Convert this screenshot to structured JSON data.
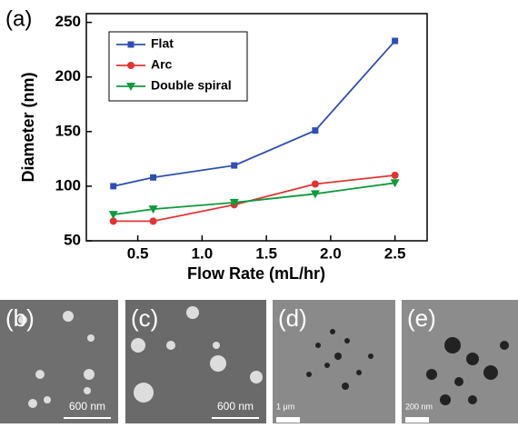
{
  "chart_data": {
    "type": "line",
    "label": "(a)",
    "xlabel": "Flow Rate (mL/hr)",
    "ylabel": "Diameter (nm)",
    "x": [
      0.31,
      0.62,
      1.25,
      1.88,
      2.5
    ],
    "series": [
      {
        "name": "Flat",
        "color": "#2f4fb0",
        "marker": "square",
        "values": [
          100,
          108,
          119,
          151,
          233
        ]
      },
      {
        "name": "Arc",
        "color": "#e03434",
        "marker": "circle",
        "values": [
          68,
          68,
          83,
          102,
          110
        ]
      },
      {
        "name": "Double spiral",
        "color": "#0f9a3c",
        "marker": "triangle-down",
        "values": [
          74,
          79,
          85,
          93,
          103
        ]
      }
    ],
    "xlim": [
      0.1,
      2.75
    ],
    "ylim": [
      50,
      258
    ],
    "xticks": [
      0.5,
      {
        "value": 1,
        "label": "1.0"
      },
      1.5,
      {
        "value": 2,
        "label": "2.0"
      },
      2.5
    ],
    "yticks": [
      50,
      100,
      150,
      200,
      250
    ],
    "legend": "upper left"
  },
  "panels": [
    {
      "label": "(b)",
      "scale": "600 nm"
    },
    {
      "label": "(c)",
      "scale": "600 nm"
    },
    {
      "label": "(d)",
      "scale": "1 μm"
    },
    {
      "label": "(e)",
      "scale": "200 nm"
    }
  ]
}
